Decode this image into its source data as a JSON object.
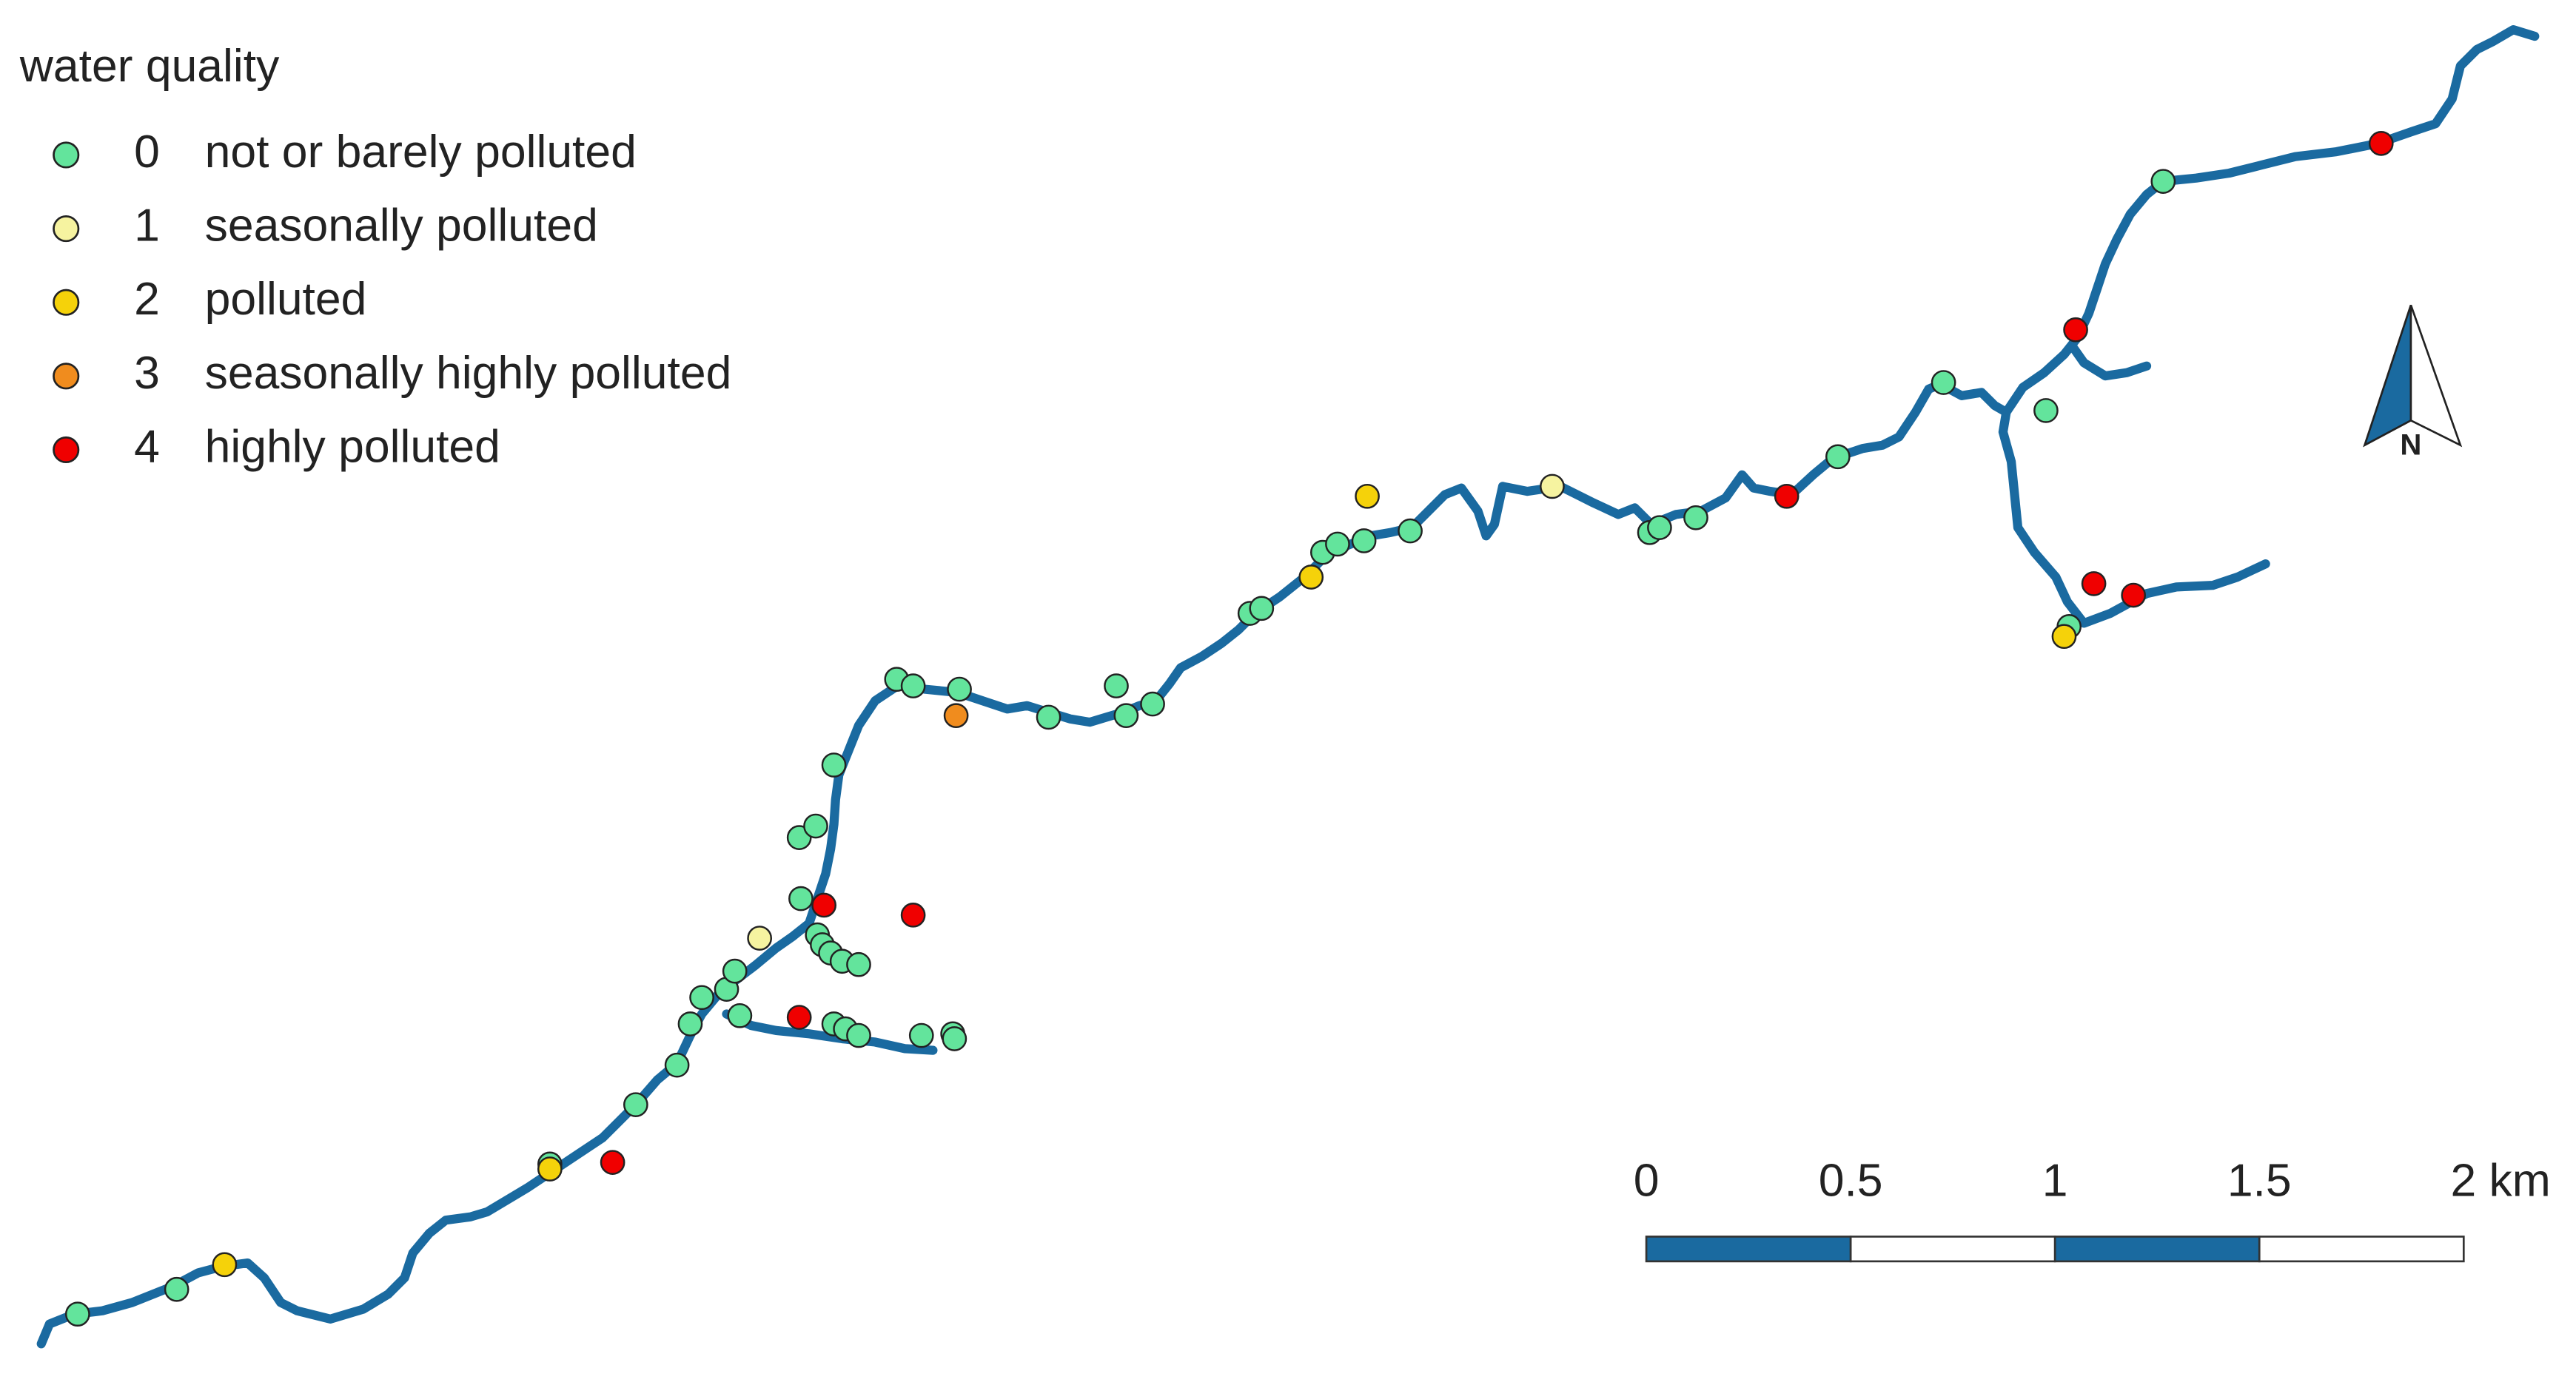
{
  "legend": {
    "title": "water quality",
    "items": [
      {
        "code": 0,
        "label": "not or barely polluted",
        "color": "#63e49c"
      },
      {
        "code": 1,
        "label": "seasonally polluted",
        "color": "#f6f3a0"
      },
      {
        "code": 2,
        "label": "polluted",
        "color": "#f5d20a"
      },
      {
        "code": 3,
        "label": "seasonally highly polluted",
        "color": "#f08c1e"
      },
      {
        "code": 4,
        "label": "highly polluted",
        "color": "#f00000"
      }
    ]
  },
  "sites": [
    0,
    0,
    2,
    0,
    2,
    4,
    0,
    0,
    0,
    0,
    0,
    0,
    0,
    4,
    1,
    0,
    4,
    4,
    0,
    0,
    0,
    0,
    0,
    0,
    0,
    0,
    0,
    0,
    0,
    0,
    0,
    0,
    0,
    0,
    0,
    3,
    0,
    0,
    0,
    0,
    0,
    0,
    2,
    0,
    0,
    0,
    2,
    0,
    1,
    0,
    0,
    0,
    4,
    0,
    0,
    0,
    4,
    0,
    4,
    4,
    4,
    0,
    2
  ],
  "north_arrow": {
    "label": "N"
  },
  "scale_bar": {
    "ticks": [
      0,
      0.5,
      1,
      1.5,
      {
        "value": 2,
        "label": "2 km"
      }
    ],
    "colors": [
      "#1a6aa0",
      "#ffffff"
    ]
  }
}
